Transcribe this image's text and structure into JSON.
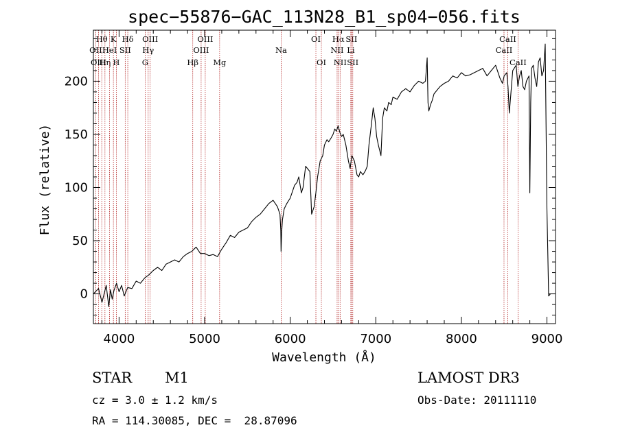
{
  "chart_data": {
    "type": "line",
    "title": "spec−55876−GAC_113N28_B1_sp04−056.fits",
    "xlabel": "Wavelength (Å)",
    "ylabel": "Flux (relative)",
    "xlim": [
      3700,
      9100
    ],
    "ylim": [
      -28,
      248
    ],
    "x_ticks": [
      {
        "value": 4000,
        "label": "4000"
      },
      {
        "value": 5000,
        "label": "5000"
      },
      {
        "value": 6000,
        "label": "6000"
      },
      {
        "value": 7000,
        "label": "7000"
      },
      {
        "value": 8000,
        "label": "8000"
      },
      {
        "value": 9000,
        "label": "9000"
      }
    ],
    "y_ticks": [
      {
        "value": 0,
        "label": "0"
      },
      {
        "value": 50,
        "label": "50"
      },
      {
        "value": 100,
        "label": "100"
      },
      {
        "value": 150,
        "label": "150"
      },
      {
        "value": 200,
        "label": "200"
      }
    ],
    "series": [
      {
        "name": "flux",
        "color": "#000000",
        "x": [
          3700,
          3760,
          3800,
          3850,
          3880,
          3900,
          3920,
          3940,
          3970,
          4000,
          4030,
          4060,
          4100,
          4150,
          4200,
          4250,
          4300,
          4350,
          4400,
          4450,
          4500,
          4550,
          4600,
          4650,
          4700,
          4750,
          4800,
          4850,
          4900,
          4950,
          5000,
          5050,
          5100,
          5150,
          5200,
          5250,
          5300,
          5350,
          5400,
          5450,
          5500,
          5550,
          5600,
          5650,
          5700,
          5750,
          5800,
          5850,
          5880,
          5890,
          5893,
          5900,
          5910,
          5930,
          5960,
          6000,
          6050,
          6080,
          6100,
          6130,
          6150,
          6180,
          6200,
          6230,
          6250,
          6280,
          6300,
          6320,
          6350,
          6380,
          6400,
          6430,
          6450,
          6480,
          6500,
          6520,
          6540,
          6560,
          6570,
          6580,
          6600,
          6620,
          6650,
          6680,
          6700,
          6720,
          6750,
          6780,
          6800,
          6820,
          6850,
          6880,
          6900,
          6920,
          6950,
          6970,
          6990,
          7010,
          7030,
          7060,
          7080,
          7100,
          7130,
          7150,
          7180,
          7200,
          7250,
          7300,
          7350,
          7400,
          7450,
          7500,
          7550,
          7580,
          7600,
          7610,
          7620,
          7640,
          7660,
          7680,
          7700,
          7750,
          7800,
          7850,
          7900,
          7950,
          8000,
          8050,
          8100,
          8150,
          8200,
          8250,
          8300,
          8350,
          8400,
          8450,
          8480,
          8500,
          8530,
          8545,
          8560,
          8600,
          8640,
          8660,
          8680,
          8700,
          8720,
          8740,
          8760,
          8790,
          8800,
          8810,
          8820,
          8840,
          8860,
          8880,
          8900,
          8920,
          8940,
          8960,
          8980,
          9000,
          9020,
          9040
        ],
        "values": [
          0,
          5,
          -8,
          8,
          -12,
          4,
          -5,
          3,
          10,
          2,
          8,
          -2,
          6,
          5,
          12,
          10,
          15,
          18,
          22,
          25,
          22,
          28,
          30,
          32,
          30,
          35,
          38,
          40,
          44,
          38,
          38,
          36,
          37,
          35,
          42,
          48,
          55,
          53,
          58,
          60,
          62,
          68,
          72,
          75,
          80,
          85,
          88,
          82,
          75,
          60,
          40,
          58,
          70,
          80,
          85,
          90,
          102,
          105,
          110,
          95,
          100,
          120,
          118,
          115,
          75,
          82,
          95,
          110,
          125,
          130,
          140,
          145,
          143,
          147,
          150,
          155,
          153,
          158,
          155,
          152,
          148,
          150,
          140,
          125,
          118,
          130,
          125,
          112,
          110,
          115,
          112,
          116,
          120,
          140,
          160,
          175,
          165,
          148,
          140,
          130,
          165,
          175,
          172,
          180,
          178,
          185,
          183,
          190,
          193,
          190,
          196,
          200,
          198,
          200,
          222,
          180,
          172,
          178,
          182,
          188,
          190,
          195,
          198,
          200,
          205,
          203,
          208,
          205,
          206,
          208,
          210,
          212,
          205,
          210,
          215,
          203,
          198,
          205,
          208,
          195,
          170,
          210,
          215,
          195,
          205,
          210,
          195,
          192,
          200,
          205,
          95,
          180,
          212,
          215,
          203,
          195,
          218,
          222,
          205,
          210,
          235,
          80,
          -2,
          0
        ]
      }
    ],
    "emission_lines": [
      {
        "label": "Hθ",
        "wavelength": 3798,
        "row": 0
      },
      {
        "label": "OII",
        "wavelength": 3727,
        "row": 1
      },
      {
        "label": "OIII",
        "wavelength": 3760,
        "row": 2
      },
      {
        "label": "Hη",
        "wavelength": 3835,
        "row": 2
      },
      {
        "label": "HeI",
        "wavelength": 3889,
        "row": 1
      },
      {
        "label": "K",
        "wavelength": 3934,
        "row": 0
      },
      {
        "label": "H",
        "wavelength": 3968,
        "row": 2
      },
      {
        "label": "SII",
        "wavelength": 4072,
        "row": 1
      },
      {
        "label": "Hδ",
        "wavelength": 4102,
        "row": 0
      },
      {
        "label": "G",
        "wavelength": 4305,
        "row": 2
      },
      {
        "label": "OIII",
        "wavelength": 4363,
        "row": 0
      },
      {
        "label": "Hγ",
        "wavelength": 4340,
        "row": 1
      },
      {
        "label": "Hβ",
        "wavelength": 4861,
        "row": 2
      },
      {
        "label": "OIII",
        "wavelength": 4959,
        "row": 1
      },
      {
        "label": "OIII",
        "wavelength": 5007,
        "row": 0
      },
      {
        "label": "Mg",
        "wavelength": 5175,
        "row": 2
      },
      {
        "label": "Na",
        "wavelength": 5894,
        "row": 1
      },
      {
        "label": "OI",
        "wavelength": 6300,
        "row": 0
      },
      {
        "label": "OI",
        "wavelength": 6364,
        "row": 2
      },
      {
        "label": "Hα",
        "wavelength": 6563,
        "row": 0
      },
      {
        "label": "NII",
        "wavelength": 6548,
        "row": 1
      },
      {
        "label": "NII",
        "wavelength": 6583,
        "row": 2
      },
      {
        "label": "SII",
        "wavelength": 6716,
        "row": 0
      },
      {
        "label": "Li",
        "wavelength": 6708,
        "row": 1
      },
      {
        "label": "SII",
        "wavelength": 6731,
        "row": 2
      },
      {
        "label": "CaII",
        "wavelength": 8498,
        "row": 1
      },
      {
        "label": "CaII",
        "wavelength": 8542,
        "row": 0
      },
      {
        "label": "CaII",
        "wavelength": 8662,
        "row": 2
      }
    ],
    "line_marker_color": "#b22222",
    "axis_color": "#000000"
  },
  "info": {
    "object_class": "STAR",
    "subclass": "M1",
    "cz": "cz = 3.0 ± 1.2 km/s",
    "coords": "RA = 114.30085, DEC =  28.87096",
    "survey": "LAMOST DR3",
    "obs_date": "Obs-Date: 20111110"
  }
}
